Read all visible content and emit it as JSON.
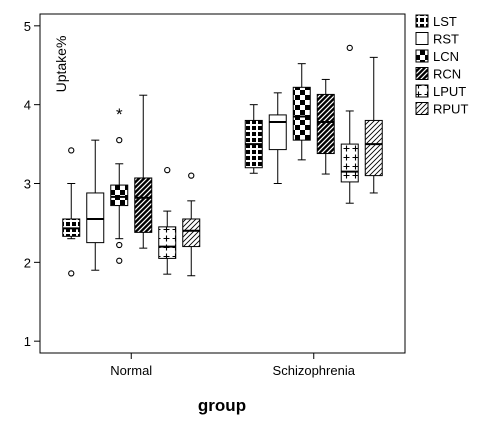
{
  "chart_data": {
    "type": "boxplot",
    "xlabel": "group",
    "ylabel": "Uptake%",
    "ylim": [
      0.85,
      5.15
    ],
    "yticks": [
      1,
      2,
      3,
      4,
      5
    ],
    "categories": [
      "Normal",
      "Schizophrenia"
    ],
    "legend_position": "right",
    "series": [
      {
        "name": "LST",
        "pattern": "grid",
        "boxes": [
          {
            "whisker_low": 2.3,
            "q1": 2.33,
            "median": 2.43,
            "q3": 2.55,
            "whisker_high": 3.0,
            "outliers": [
              3.42,
              1.86
            ],
            "extremes": []
          },
          {
            "whisker_low": 3.13,
            "q1": 3.2,
            "median": 3.5,
            "q3": 3.8,
            "whisker_high": 4.0,
            "outliers": [],
            "extremes": []
          }
        ]
      },
      {
        "name": "RST",
        "pattern": "empty",
        "boxes": [
          {
            "whisker_low": 1.9,
            "q1": 2.25,
            "median": 2.55,
            "q3": 2.88,
            "whisker_high": 3.55,
            "outliers": [],
            "extremes": []
          },
          {
            "whisker_low": 3.0,
            "q1": 3.43,
            "median": 3.78,
            "q3": 3.87,
            "whisker_high": 4.15,
            "outliers": [],
            "extremes": []
          }
        ]
      },
      {
        "name": "LCN",
        "pattern": "checker",
        "boxes": [
          {
            "whisker_low": 2.3,
            "q1": 2.72,
            "median": 2.83,
            "q3": 2.98,
            "whisker_high": 3.25,
            "outliers": [
              3.55,
              2.22,
              2.02
            ],
            "extremes": [
              3.88
            ]
          },
          {
            "whisker_low": 3.3,
            "q1": 3.55,
            "median": 3.85,
            "q3": 4.22,
            "whisker_high": 4.52,
            "outliers": [],
            "extremes": []
          }
        ]
      },
      {
        "name": "RCN",
        "pattern": "diag-dense",
        "boxes": [
          {
            "whisker_low": 2.18,
            "q1": 2.38,
            "median": 2.82,
            "q3": 3.07,
            "whisker_high": 4.12,
            "outliers": [],
            "extremes": []
          },
          {
            "whisker_low": 3.12,
            "q1": 3.38,
            "median": 3.78,
            "q3": 4.13,
            "whisker_high": 4.32,
            "outliers": [],
            "extremes": []
          }
        ]
      },
      {
        "name": "LPUT",
        "pattern": "plus",
        "boxes": [
          {
            "whisker_low": 1.85,
            "q1": 2.05,
            "median": 2.2,
            "q3": 2.45,
            "whisker_high": 2.65,
            "outliers": [
              3.17
            ],
            "extremes": []
          },
          {
            "whisker_low": 2.75,
            "q1": 3.02,
            "median": 3.15,
            "q3": 3.5,
            "whisker_high": 3.92,
            "outliers": [
              4.72
            ],
            "extremes": []
          }
        ]
      },
      {
        "name": "RPUT",
        "pattern": "diag-sparse",
        "boxes": [
          {
            "whisker_low": 1.83,
            "q1": 2.2,
            "median": 2.4,
            "q3": 2.55,
            "whisker_high": 2.78,
            "outliers": [
              3.1
            ],
            "extremes": []
          },
          {
            "whisker_low": 2.88,
            "q1": 3.1,
            "median": 3.5,
            "q3": 3.8,
            "whisker_high": 4.6,
            "outliers": [],
            "extremes": []
          }
        ]
      }
    ]
  }
}
